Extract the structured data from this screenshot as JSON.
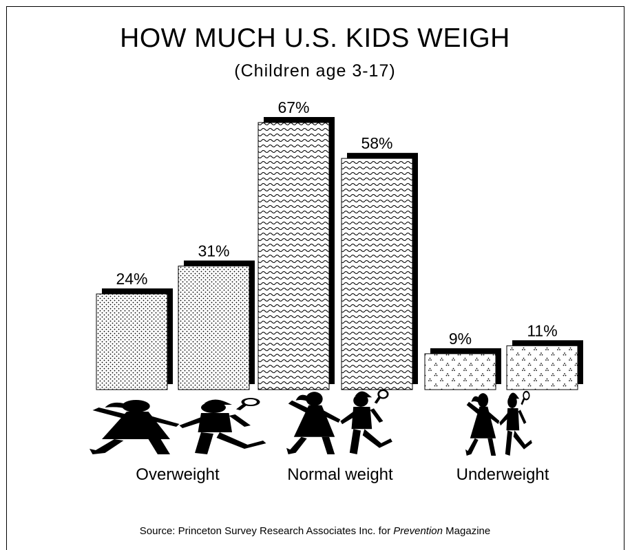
{
  "chart_data": {
    "type": "bar",
    "title": "HOW MUCH U.S. KIDS WEIGH",
    "subtitle": "(Children age 3-17)",
    "categories": [
      "Overweight",
      "Normal weight",
      "Underweight"
    ],
    "bars": [
      {
        "category": "Overweight",
        "value": 24,
        "label": "24%",
        "pattern": "dots"
      },
      {
        "category": "Overweight",
        "value": 31,
        "label": "31%",
        "pattern": "dots"
      },
      {
        "category": "Normal weight",
        "value": 67,
        "label": "67%",
        "pattern": "waves"
      },
      {
        "category": "Normal weight",
        "value": 58,
        "label": "58%",
        "pattern": "waves"
      },
      {
        "category": "Underweight",
        "value": 9,
        "label": "9%",
        "pattern": "clovers"
      },
      {
        "category": "Underweight",
        "value": 11,
        "label": "11%",
        "pattern": "clovers"
      }
    ],
    "unit": "%",
    "ylim": [
      0,
      67
    ],
    "grid": false,
    "legend": "none"
  },
  "source": {
    "prefix": "Source: Princeton Survey Research Associates Inc. for ",
    "publication": "Prevention",
    "suffix": " Magazine"
  },
  "icons": [
    "kids-silhouette-icon"
  ]
}
